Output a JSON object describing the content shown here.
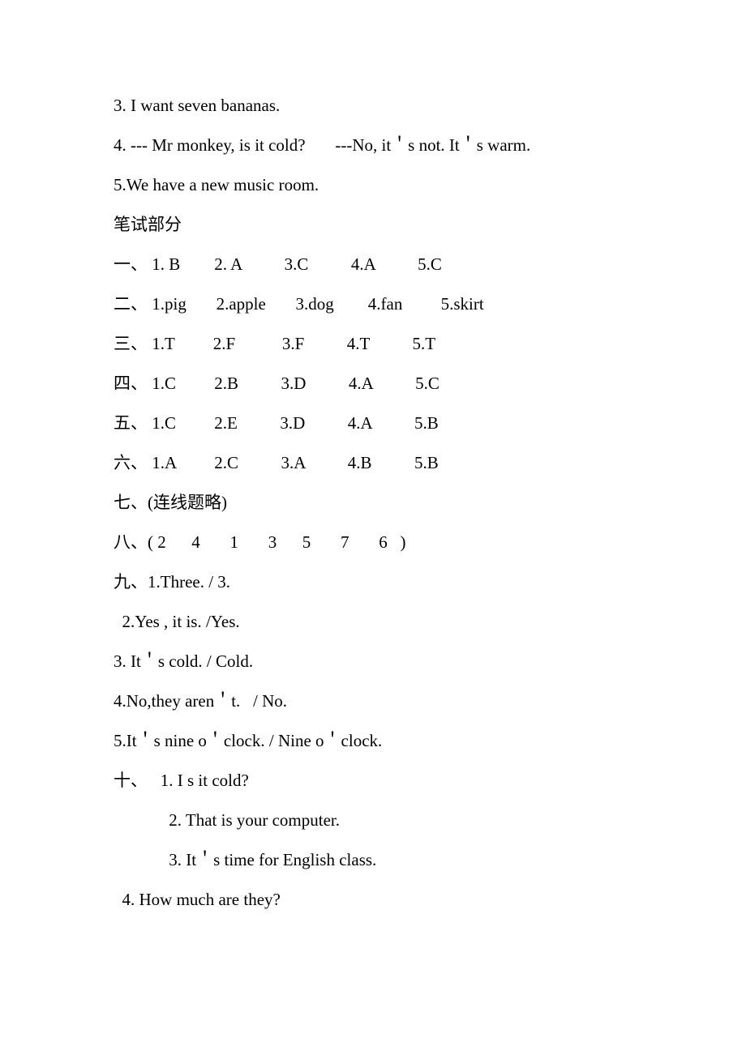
{
  "font": {
    "size_pt": 16,
    "family": "Times New Roman / SimSun",
    "color": "#000000"
  },
  "background_color": "#ffffff",
  "lines": [
    "3. I want seven bananas.",
    "4. --- Mr monkey, is it cold?       ---No, it＇s not. It＇s warm.",
    "5.We have a new music room.",
    "笔试部分",
    "一、 1. B        2. A          3.C          4.A          5.C",
    "二、 1.pig       2.apple       3.dog        4.fan         5.skirt",
    "",
    "三、 1.T         2.F           3.F          4.T          5.T",
    "四、 1.C         2.B          3.D          4.A          5.C",
    "五、 1.C         2.E          3.D          4.A          5.B",
    "六、 1.A         2.C          3.A          4.B          5.B",
    "七、(连线题略)",
    "八、( 2      4       1       3      5       7       6   )",
    "九、1.Three. / 3.",
    "  2.Yes , it is. /Yes.",
    "3. It＇s cold. / Cold.",
    "4.No,they aren＇t.   / No.",
    "5.It＇s nine o＇clock. / Nine o＇clock.",
    "十、   1. I s it cold?",
    "             2. That is your computer.",
    "             3. It＇s time for English class.",
    "  4. How much are they?"
  ]
}
